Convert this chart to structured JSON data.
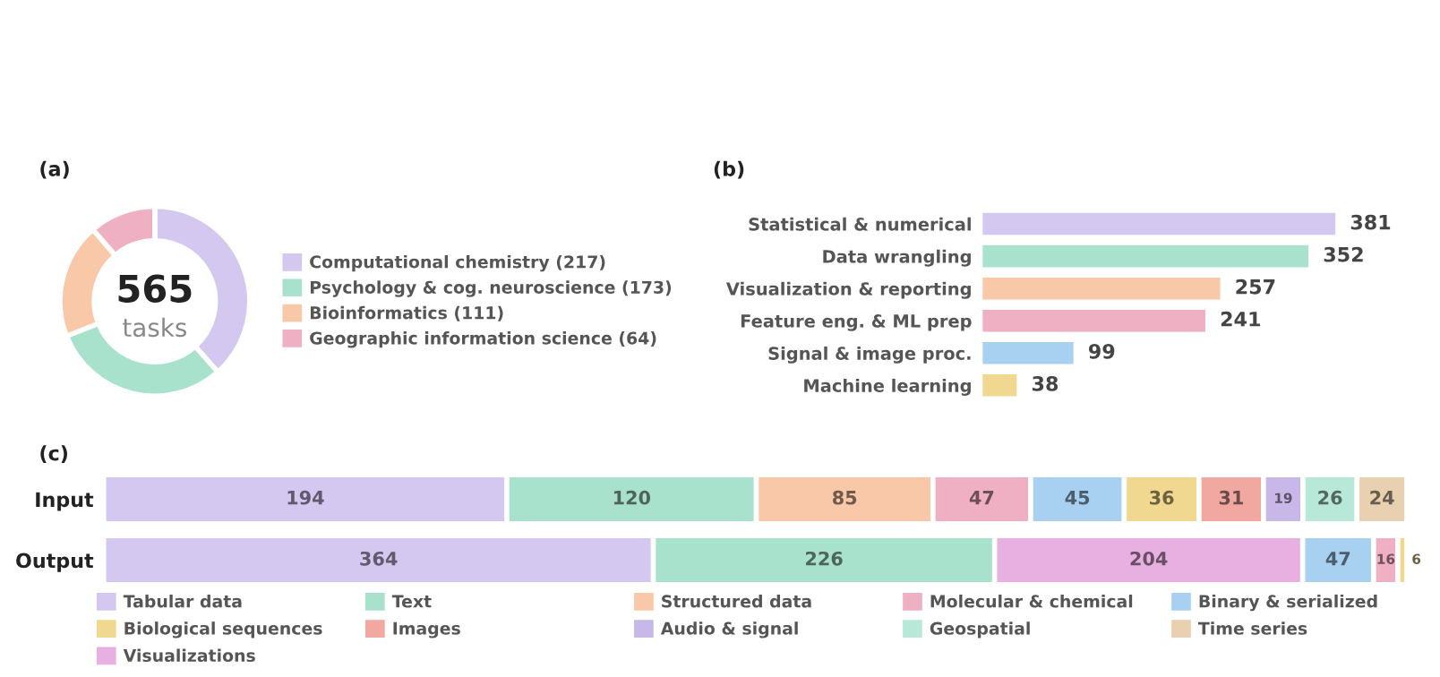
{
  "chart_data": [
    {
      "type": "donut",
      "title": "(a)",
      "categories": [
        "Computational chemistry (217)",
        "Psychology & cog. neuroscience (173)",
        "Bioinformatics (111)",
        "Geographic information science (64)"
      ],
      "values": [
        217,
        173,
        111,
        64
      ],
      "colors": [
        "#d5c8f0",
        "#a8e2cc",
        "#f8c8a8",
        "#efb0c4"
      ],
      "annotations": [
        "565",
        "tasks"
      ],
      "legend": "right"
    },
    {
      "type": "bar",
      "title": "(b)",
      "orientation": "horizontal",
      "categories": [
        "Statistical & numerical",
        "Data wrangling",
        "Visualization & reporting",
        "Feature eng. & ML prep",
        "Signal & image proc.",
        "Machine learning"
      ],
      "values": [
        381,
        352,
        257,
        241,
        99,
        38
      ],
      "colors": [
        "#d5c8f0",
        "#a8e2cc",
        "#f8c8a8",
        "#efb0c4",
        "#a8d0f0",
        "#f0d890"
      ],
      "data_labels": true
    },
    {
      "type": "bar",
      "title": "(c)",
      "orientation": "horizontal",
      "stacked": true,
      "data_labels": true,
      "legend": "bottom",
      "categories": [
        "Input"
      ],
      "series": [
        {
          "name": "Tabular data",
          "color": "#d5c8f0",
          "values": [
            194
          ]
        },
        {
          "name": "Text",
          "color": "#a8e2cc",
          "values": [
            120
          ]
        },
        {
          "name": "Structured data",
          "color": "#f8c8a8",
          "values": [
            85
          ]
        },
        {
          "name": "Molecular & chemical",
          "color": "#efb0c4",
          "values": [
            47
          ]
        },
        {
          "name": "Binary & serialized",
          "color": "#a8d0f0",
          "values": [
            45
          ]
        },
        {
          "name": "Biological sequences",
          "color": "#f0d890",
          "values": [
            36
          ]
        },
        {
          "name": "Images",
          "color": "#f0a8a0",
          "values": [
            31
          ]
        },
        {
          "name": "Audio & signal",
          "color": "#c8b8e8",
          "values": [
            19
          ]
        },
        {
          "name": "Geospatial",
          "color": "#b8e8d8",
          "values": [
            26
          ]
        },
        {
          "name": "Time series",
          "color": "#e8d0b0",
          "values": [
            24
          ]
        }
      ]
    },
    {
      "type": "bar",
      "orientation": "horizontal",
      "stacked": true,
      "data_labels": true,
      "legend": "bottom",
      "categories": [
        "Output"
      ],
      "series": [
        {
          "name": "Tabular data",
          "color": "#d5c8f0",
          "values": [
            364
          ]
        },
        {
          "name": "Text",
          "color": "#a8e2cc",
          "values": [
            226
          ]
        },
        {
          "name": "Visualizations",
          "color": "#e8b0e0",
          "values": [
            204
          ]
        },
        {
          "name": "Binary & serialized",
          "color": "#a8d0f0",
          "values": [
            47
          ]
        },
        {
          "name": "Molecular & chemical",
          "color": "#efb0c4",
          "values": [
            16
          ]
        },
        {
          "name": "Biological sequences",
          "color": "#f0d890",
          "values": [
            6
          ]
        }
      ]
    }
  ]
}
